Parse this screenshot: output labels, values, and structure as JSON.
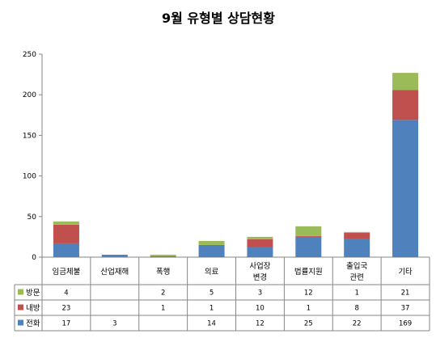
{
  "chart_data": {
    "type": "bar",
    "stacked": true,
    "title": "9월 유형별 상담현황",
    "xlabel": "",
    "ylabel": "",
    "ylim": [
      0,
      250
    ],
    "yticks": [
      0,
      50,
      100,
      150,
      200,
      250
    ],
    "grid": false,
    "legend": "left-in-table",
    "categories": [
      [
        "임금체불"
      ],
      [
        "산업재해"
      ],
      [
        "폭행"
      ],
      [
        "의료"
      ],
      [
        "사업장",
        "변경"
      ],
      [
        "법률지원"
      ],
      [
        "출입국",
        "관련"
      ],
      [
        "기타"
      ]
    ],
    "series": [
      {
        "name": "전화",
        "color": "#4f81bd",
        "values": [
          17,
          3,
          null,
          14,
          12,
          25,
          22,
          169
        ]
      },
      {
        "name": "내방",
        "color": "#c0504d",
        "values": [
          23,
          null,
          1,
          1,
          10,
          1,
          8,
          37
        ]
      },
      {
        "name": "방문",
        "color": "#9bbb59",
        "values": [
          4,
          null,
          2,
          5,
          3,
          12,
          1,
          21
        ]
      }
    ],
    "table_rows": [
      "방문",
      "내방",
      "전화"
    ]
  }
}
